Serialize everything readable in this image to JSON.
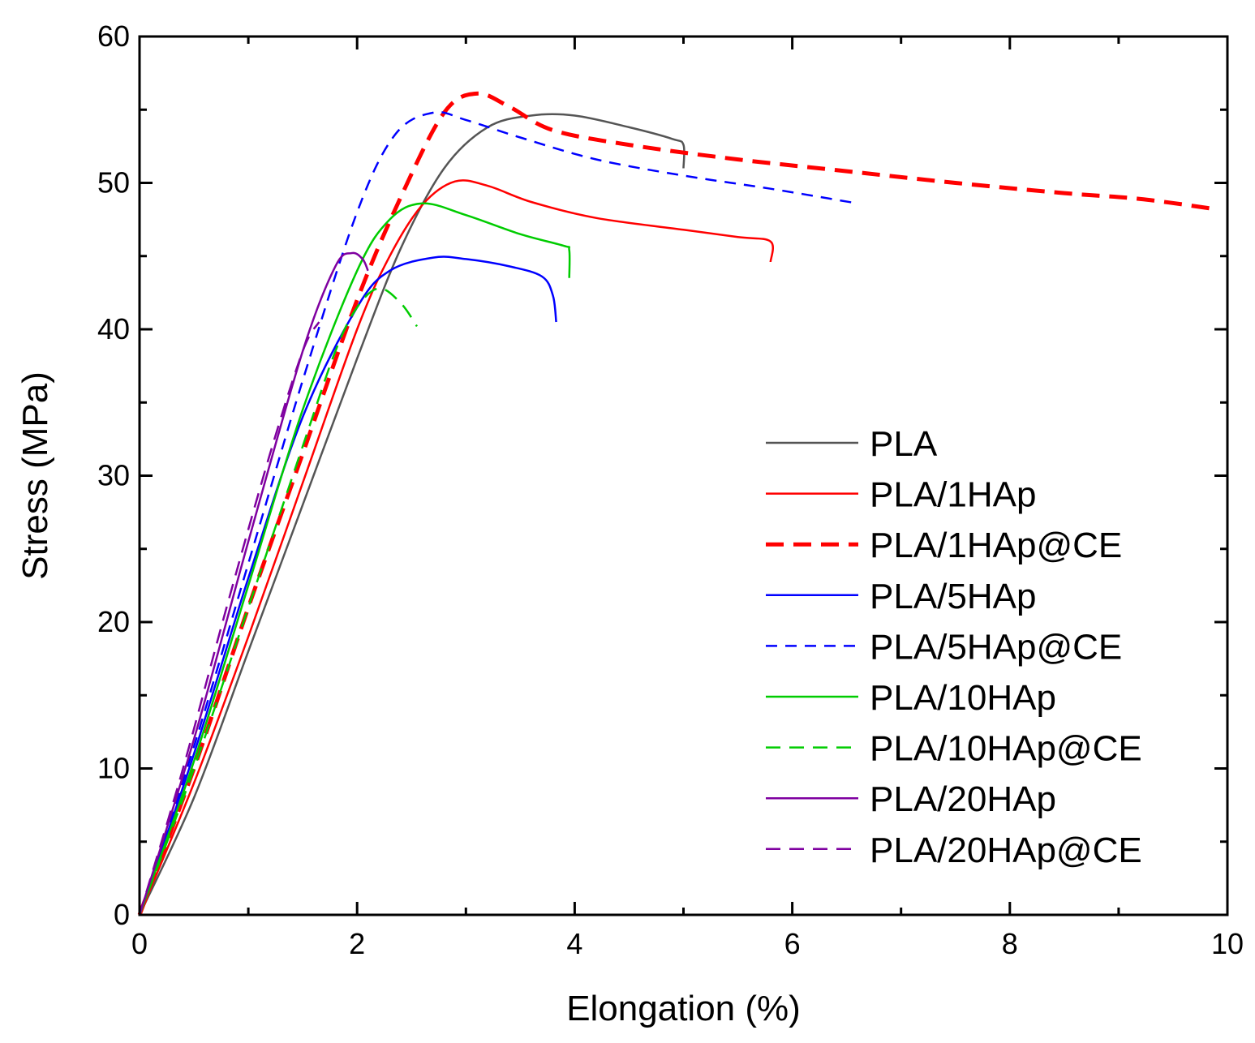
{
  "chart_data": {
    "type": "line",
    "title": "",
    "xlabel": "Elongation (%)",
    "ylabel": "Stress (MPa)",
    "xlim": [
      0,
      10
    ],
    "ylim": [
      0,
      60
    ],
    "xticks": [
      "0",
      "2",
      "4",
      "6",
      "8",
      "10"
    ],
    "xtick_values": [
      0,
      2,
      4,
      6,
      8,
      10
    ],
    "yticks": [
      "0",
      "10",
      "20",
      "30",
      "40",
      "50",
      "60"
    ],
    "ytick_values": [
      0,
      10,
      20,
      30,
      40,
      50,
      60
    ],
    "grid": false,
    "legend_position": "right",
    "series": [
      {
        "name": "PLA",
        "color": "#555555",
        "dash": "solid",
        "x": [
          0,
          0.5,
          1,
          1.5,
          2,
          2.4,
          2.8,
          3.2,
          3.6,
          4.0,
          4.5,
          4.9,
          5.0,
          5.0
        ],
        "y": [
          0,
          8,
          18,
          28,
          38,
          45.5,
          51,
          53.8,
          54.6,
          54.6,
          53.8,
          53,
          52.6,
          51
        ]
      },
      {
        "name": "PLA/1HAp",
        "color": "#ff0000",
        "dash": "solid",
        "x": [
          0,
          0.5,
          1,
          1.5,
          2,
          2.3,
          2.6,
          2.9,
          3.2,
          3.6,
          4.2,
          5.0,
          5.5,
          5.8,
          5.8
        ],
        "y": [
          0,
          9,
          19,
          29.5,
          40,
          45,
          48.5,
          50.1,
          49.8,
          48.7,
          47.6,
          46.8,
          46.3,
          46,
          44.6
        ]
      },
      {
        "name": "PLA/1HAp@CE",
        "color": "#ff0000",
        "dash": "long",
        "x": [
          0,
          0.5,
          1,
          1.5,
          2,
          2.4,
          2.8,
          3.1,
          3.4,
          3.8,
          4.5,
          5.5,
          6.5,
          7.5,
          8.5,
          9.2,
          9.9
        ],
        "y": [
          0,
          10,
          21,
          31.5,
          42,
          49,
          54.8,
          56.1,
          55.2,
          53.6,
          52.6,
          51.6,
          50.8,
          50,
          49.3,
          48.9,
          48.2
        ]
      },
      {
        "name": "PLA/5HAp",
        "color": "#0000ff",
        "dash": "solid",
        "x": [
          0,
          0.5,
          1,
          1.5,
          2,
          2.3,
          2.7,
          3.0,
          3.4,
          3.7,
          3.8,
          3.83
        ],
        "y": [
          0,
          11,
          23,
          34,
          41.5,
          44,
          44.9,
          44.8,
          44.3,
          43.6,
          42.3,
          40.5
        ]
      },
      {
        "name": "PLA/5HAp@CE",
        "color": "#0000ff",
        "dash": "short",
        "x": [
          0,
          0.5,
          1,
          1.5,
          2,
          2.35,
          2.7,
          3.0,
          3.5,
          4.2,
          5.0,
          5.8,
          6.6
        ],
        "y": [
          0,
          11.5,
          24,
          36.5,
          48,
          53.3,
          54.8,
          54.3,
          53.1,
          51.6,
          50.5,
          49.6,
          48.6
        ]
      },
      {
        "name": "PLA/10HAp",
        "color": "#00cc00",
        "dash": "solid",
        "x": [
          0,
          0.5,
          1,
          1.5,
          2,
          2.3,
          2.6,
          3.0,
          3.5,
          3.9,
          3.95,
          3.95
        ],
        "y": [
          0,
          10.5,
          22.5,
          34.5,
          44,
          47.5,
          48.6,
          47.8,
          46.5,
          45.7,
          45.4,
          43.5
        ]
      },
      {
        "name": "PLA/10HAp@CE",
        "color": "#00cc00",
        "dash": "medium",
        "x": [
          0,
          0.5,
          1,
          1.5,
          1.8,
          2.0,
          2.2,
          2.4,
          2.55
        ],
        "y": [
          0,
          10,
          21,
          32,
          38.5,
          41.5,
          42.8,
          41.8,
          40.2
        ]
      },
      {
        "name": "PLA/20HAp",
        "color": "#7f00a0",
        "dash": "solid",
        "x": [
          0,
          0.5,
          1,
          1.5,
          1.8,
          1.95,
          2.05,
          2.1
        ],
        "y": [
          0,
          12,
          25.5,
          38.5,
          44.3,
          45.2,
          44.8,
          44
        ]
      },
      {
        "name": "PLA/20HAp@CE",
        "color": "#7f00a0",
        "dash": "medium",
        "x": [
          0,
          0.4,
          0.8,
          1.2,
          1.5,
          1.65
        ],
        "y": [
          0,
          10,
          21,
          31.5,
          38.5,
          40.5
        ]
      }
    ]
  }
}
